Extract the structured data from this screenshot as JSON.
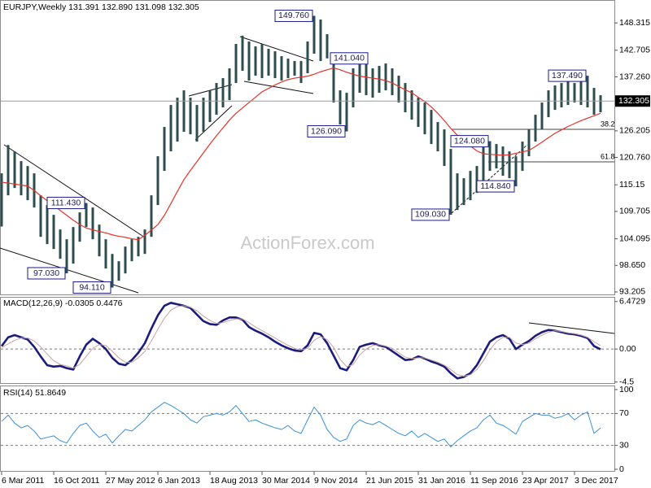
{
  "chart_data": [
    {
      "type": "range",
      "title": "EURJPY,Weekly  131.391 132.890 131.098 132.305",
      "color": "#2e4d4d",
      "high": [
        117.5,
        123.3,
        122.0,
        120.0,
        119.0,
        117.5,
        113.0,
        111.0,
        109.0,
        106.0,
        104.0,
        106.5,
        109.5,
        111.43,
        110.5,
        107.0,
        104.0,
        101.0,
        99.5,
        102.5,
        104.0,
        104.5,
        106.0,
        113.0,
        121.0,
        127.0,
        131.5,
        133.0,
        134.5,
        133.0,
        131.5,
        133.0,
        134.5,
        136.0,
        137.0,
        139.0,
        144.0,
        145.7,
        144.5,
        143.5,
        144.0,
        143.0,
        142.5,
        141.5,
        141.0,
        140.5,
        140.5,
        144.5,
        149.76,
        149.0,
        146.0,
        142.0,
        134.5,
        134.0,
        139.0,
        141.0,
        140.5,
        139.0,
        139.5,
        140.0,
        139.0,
        137.5,
        136.0,
        134.5,
        133.0,
        132.0,
        130.5,
        128.0,
        126.5,
        122.5,
        117.5,
        116.5,
        118.0,
        119.0,
        123.0,
        124.08,
        123.5,
        123.0,
        122.0,
        121.0,
        124.0,
        126.5,
        129.5,
        132.0,
        134.5,
        135.5,
        136.0,
        136.5,
        136.0,
        137.0,
        137.49,
        135.0,
        133.5
      ],
      "low": [
        106.6,
        113.0,
        114.5,
        113.0,
        112.0,
        110.5,
        104.5,
        103.0,
        102.0,
        100.0,
        97.03,
        99.0,
        103.5,
        106.5,
        104.0,
        100.5,
        98.0,
        94.11,
        95.5,
        97.0,
        99.5,
        100.5,
        101.0,
        104.5,
        111.0,
        118.0,
        122.0,
        124.0,
        126.0,
        125.5,
        124.0,
        126.0,
        128.0,
        129.5,
        131.0,
        132.5,
        136.0,
        138.5,
        136.5,
        137.5,
        137.0,
        137.5,
        137.0,
        136.5,
        137.0,
        137.5,
        136.0,
        138.0,
        142.0,
        140.5,
        141.04,
        132.0,
        127.5,
        126.09,
        131.0,
        134.0,
        133.5,
        133.0,
        134.0,
        134.5,
        133.5,
        132.0,
        130.0,
        128.5,
        127.0,
        125.5,
        123.5,
        122.0,
        119.0,
        109.03,
        110.0,
        111.0,
        112.0,
        113.5,
        116.0,
        118.0,
        118.5,
        117.0,
        116.5,
        114.84,
        118.0,
        121.0,
        124.0,
        126.5,
        129.0,
        130.5,
        131.0,
        131.5,
        132.0,
        131.5,
        131.0,
        129.5,
        130.0
      ],
      "overlay": {
        "type": "line",
        "color": "#e3342c",
        "values": [
          115.7,
          115.5,
          115.3,
          115.1,
          114.9,
          114.0,
          112.9,
          111.9,
          110.9,
          109.9,
          108.9,
          107.9,
          107.0,
          106.3,
          105.9,
          105.6,
          105.3,
          104.9,
          104.6,
          104.4,
          104.1,
          103.9,
          104.8,
          105.9,
          107.0,
          108.9,
          111.3,
          113.8,
          116.2,
          118.1,
          119.9,
          121.7,
          123.5,
          125.2,
          126.8,
          128.4,
          129.8,
          130.9,
          132.0,
          133.1,
          134.2,
          134.9,
          135.6,
          136.2,
          136.7,
          137.0,
          137.2,
          137.4,
          137.8,
          138.3,
          138.7,
          139.1,
          138.7,
          138.2,
          137.8,
          137.4,
          137.2,
          137.0,
          136.8,
          136.5,
          136.0,
          135.3,
          134.6,
          134.0,
          133.1,
          132.2,
          131.1,
          129.8,
          128.3,
          126.7,
          125.3,
          124.0,
          123.1,
          122.1,
          121.5,
          121.4,
          121.3,
          121.2,
          121.3,
          121.6,
          121.9,
          122.2,
          123.0,
          123.9,
          124.8,
          125.7,
          126.4,
          127.1,
          127.7,
          128.3,
          128.8,
          129.3,
          129.8
        ]
      },
      "ylim": [
        92.7,
        153.0
      ],
      "yticks": [
        148.315,
        142.705,
        {
          "value": 137.26,
          "label": "137.260"
        },
        126.205,
        {
          "value": 120.76,
          "label": "120.760"
        },
        115.15,
        109.705,
        104.095,
        {
          "value": 98.65,
          "label": "98.650"
        },
        93.205
      ],
      "last_price": 132.305,
      "annotations": [
        {
          "index": 48,
          "value": 149.76,
          "label": "149.760",
          "side": "left"
        },
        {
          "index": 50,
          "value": 141.04,
          "label": "141.040",
          "side": "right"
        },
        {
          "index": 53,
          "value": 126.09,
          "label": "126.090",
          "side": "left"
        },
        {
          "index": 69,
          "value": 109.03,
          "label": "109.030",
          "side": "left"
        },
        {
          "index": 75,
          "value": 124.08,
          "label": "124.080",
          "side": "left"
        },
        {
          "index": 79,
          "value": 114.84,
          "label": "114.840",
          "side": "left"
        },
        {
          "index": 90,
          "value": 137.49,
          "label": "137.490",
          "side": "left"
        },
        {
          "index": 13,
          "value": 111.43,
          "label": "111.430",
          "side": "left"
        },
        {
          "index": 10,
          "value": 97.03,
          "label": "97.030",
          "side": "left"
        },
        {
          "index": 17,
          "value": 94.11,
          "label": "94.110",
          "side": "left"
        }
      ],
      "fib_labels": [
        "38.2",
        "61.8"
      ],
      "watermark": "ActionForex.com"
    },
    {
      "type": "line",
      "title": "MACD(12,26,9) -0.0305 0.4476",
      "series": [
        {
          "color": "#1c1c7c",
          "width": 2.6,
          "values": [
            0.4,
            1.6,
            1.9,
            1.6,
            1.3,
            0.3,
            -1.0,
            -2.2,
            -2.4,
            -2.3,
            -2.6,
            -2.8,
            -1.0,
            0.6,
            1.4,
            0.8,
            0.0,
            -1.2,
            -2.0,
            -2.2,
            -1.5,
            -0.5,
            0.8,
            2.8,
            4.6,
            5.9,
            6.3,
            6.1,
            5.9,
            5.6,
            4.7,
            3.8,
            3.4,
            3.3,
            3.9,
            4.3,
            4.3,
            4.0,
            3.0,
            2.5,
            2.1,
            1.6,
            1.0,
            0.5,
            0.1,
            -0.2,
            -0.3,
            0.5,
            2.2,
            2.0,
            0.8,
            -0.9,
            -2.6,
            -2.9,
            -1.5,
            0.3,
            0.6,
            0.8,
            0.5,
            0.3,
            -0.3,
            -0.9,
            -1.5,
            -1.4,
            -1.0,
            -1.3,
            -1.7,
            -2.0,
            -2.4,
            -3.3,
            -4.0,
            -3.8,
            -3.3,
            -2.2,
            -0.6,
            1.0,
            1.6,
            1.9,
            1.4,
            0.0,
            0.6,
            1.1,
            1.8,
            2.3,
            2.6,
            2.5,
            2.3,
            2.1,
            2.0,
            1.8,
            1.5,
            0.4,
            -0.0305
          ]
        },
        {
          "color": "#c9a3a3",
          "width": 1,
          "values": [
            0.2,
            0.7,
            1.2,
            1.5,
            1.5,
            1.1,
            0.3,
            -0.7,
            -1.6,
            -2.1,
            -2.3,
            -2.6,
            -2.1,
            -1.0,
            0.1,
            0.6,
            0.5,
            -0.3,
            -1.2,
            -1.8,
            -1.8,
            -1.2,
            -0.3,
            1.1,
            2.7,
            4.2,
            5.3,
            5.8,
            5.9,
            5.7,
            5.2,
            4.5,
            3.9,
            3.5,
            3.6,
            3.9,
            4.1,
            4.1,
            3.6,
            3.0,
            2.5,
            2.0,
            1.5,
            1.0,
            0.5,
            0.1,
            -0.1,
            0.1,
            1.2,
            1.7,
            1.3,
            0.2,
            -1.4,
            -2.4,
            -2.1,
            -0.8,
            0.0,
            0.5,
            0.6,
            0.4,
            0.1,
            -0.5,
            -1.1,
            -1.3,
            -1.2,
            -1.2,
            -1.5,
            -1.8,
            -2.2,
            -2.8,
            -3.5,
            -3.7,
            -3.5,
            -2.8,
            -1.6,
            -0.1,
            1.0,
            1.6,
            1.6,
            0.8,
            0.6,
            0.8,
            1.4,
            1.9,
            2.3,
            2.5,
            2.4,
            2.2,
            2.1,
            1.9,
            1.6,
            1.0,
            0.4476
          ]
        }
      ],
      "ylim": [
        -4.75,
        7.0
      ],
      "yticks": [
        6.4729,
        {
          "value": 0,
          "label": "0.00"
        },
        -4.5
      ],
      "levels": [
        0
      ]
    },
    {
      "type": "line",
      "title": "RSI(14) 51.8649",
      "series": [
        {
          "color": "#3b8fd8",
          "width": 1,
          "values": [
            60,
            68,
            58,
            52,
            55,
            48,
            38,
            40,
            42,
            36,
            33,
            45,
            55,
            58,
            48,
            40,
            44,
            33,
            42,
            50,
            48,
            55,
            62,
            72,
            78,
            84,
            80,
            75,
            70,
            62,
            58,
            66,
            68,
            70,
            68,
            72,
            80,
            70,
            60,
            62,
            58,
            55,
            52,
            50,
            55,
            48,
            45,
            62,
            78,
            68,
            50,
            40,
            35,
            38,
            55,
            62,
            58,
            56,
            60,
            55,
            50,
            45,
            42,
            48,
            40,
            45,
            40,
            35,
            38,
            28,
            36,
            42,
            48,
            52,
            62,
            68,
            58,
            55,
            50,
            44,
            60,
            65,
            70,
            68,
            68,
            64,
            66,
            70,
            62,
            68,
            72,
            45,
            51.8649
          ]
        }
      ],
      "ylim": [
        0,
        100
      ],
      "yticks": [
        100,
        70,
        30,
        0
      ],
      "levels": [
        70,
        30
      ],
      "categories": [
        "6 Mar 2011",
        null,
        null,
        null,
        null,
        null,
        null,
        null,
        "16 Oct 2011",
        null,
        null,
        null,
        null,
        null,
        null,
        null,
        "27 May 2012",
        null,
        null,
        null,
        null,
        null,
        null,
        null,
        "6 Jan 2013",
        null,
        null,
        null,
        null,
        null,
        null,
        null,
        "18 Aug 2013",
        null,
        null,
        null,
        null,
        null,
        null,
        null,
        "30 Mar 2014",
        null,
        null,
        null,
        null,
        null,
        null,
        null,
        "9 Nov 2014",
        null,
        null,
        null,
        null,
        null,
        null,
        null,
        "21 Jun 2015",
        null,
        null,
        null,
        null,
        null,
        null,
        null,
        "31 Jan 2016",
        null,
        null,
        null,
        null,
        null,
        null,
        null,
        "11 Sep 2016",
        null,
        null,
        null,
        null,
        null,
        null,
        null,
        "23 Apr 2017",
        null,
        null,
        null,
        null,
        null,
        null,
        null,
        "3 Dec 2017",
        null,
        null,
        null,
        null
      ]
    }
  ]
}
